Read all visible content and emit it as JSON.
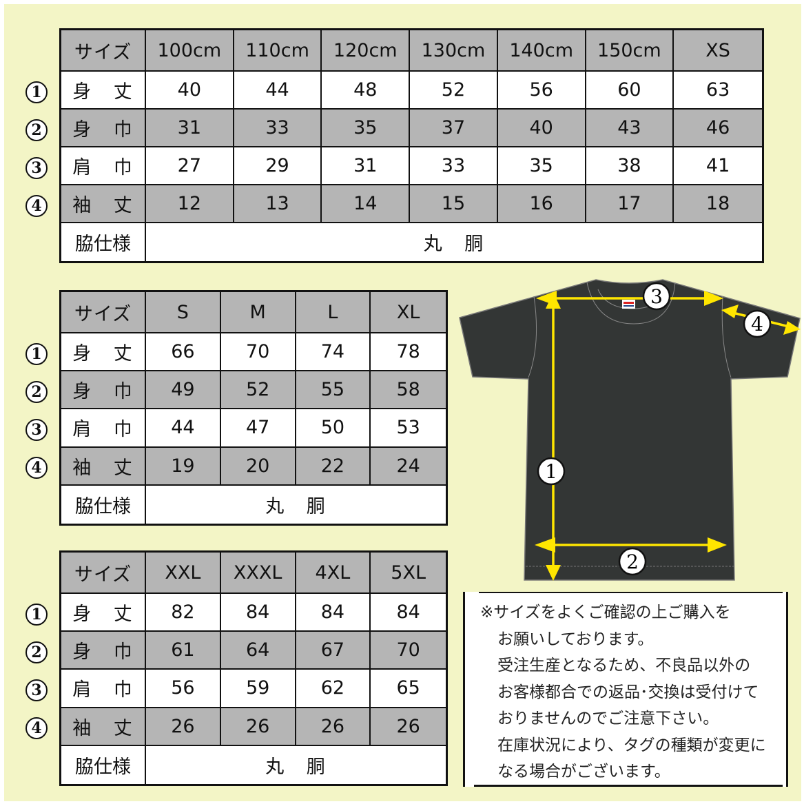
{
  "row_labels": {
    "header": "サイズ",
    "r1": "身 丈",
    "r2": "身 巾",
    "r3": "肩 巾",
    "r4": "袖 丈",
    "side": "脇仕様"
  },
  "row_markers": [
    "1",
    "2",
    "3",
    "4"
  ],
  "tables": [
    {
      "sizes": [
        "100cm",
        "110cm",
        "120cm",
        "130cm",
        "140cm",
        "150cm",
        "XS"
      ],
      "rows": [
        [
          "40",
          "44",
          "48",
          "52",
          "56",
          "60",
          "63"
        ],
        [
          "31",
          "33",
          "35",
          "37",
          "40",
          "43",
          "46"
        ],
        [
          "27",
          "29",
          "31",
          "33",
          "35",
          "38",
          "41"
        ],
        [
          "12",
          "13",
          "14",
          "15",
          "16",
          "17",
          "18"
        ]
      ],
      "side_value": "丸 胴"
    },
    {
      "sizes": [
        "S",
        "M",
        "L",
        "XL"
      ],
      "rows": [
        [
          "66",
          "70",
          "74",
          "78"
        ],
        [
          "49",
          "52",
          "55",
          "58"
        ],
        [
          "44",
          "47",
          "50",
          "53"
        ],
        [
          "19",
          "20",
          "22",
          "24"
        ]
      ],
      "side_value": "丸 胴"
    },
    {
      "sizes": [
        "XXL",
        "XXXL",
        "4XL",
        "5XL"
      ],
      "rows": [
        [
          "82",
          "84",
          "84",
          "84"
        ],
        [
          "61",
          "64",
          "67",
          "70"
        ],
        [
          "56",
          "59",
          "62",
          "65"
        ],
        [
          "26",
          "26",
          "26",
          "26"
        ]
      ],
      "side_value": "丸 胴"
    }
  ],
  "diagram": {
    "markers": [
      "1",
      "2",
      "3",
      "4"
    ],
    "shirt_color": "#333635",
    "arrow_color": "#ffe600"
  },
  "note": {
    "lines": [
      "※サイズをよくご確認の上ご購入を",
      "お願いしております。",
      "受注生産となるため、不良品以外の",
      "お客様都合での返品･交換は受付けて",
      "おりませんのでご注意下さい。",
      "在庫状況により、タグの種類が変更に",
      "なる場合がございます。"
    ]
  },
  "colors": {
    "background": "#f3f5c6",
    "header_gray": "#b5b5b5"
  }
}
